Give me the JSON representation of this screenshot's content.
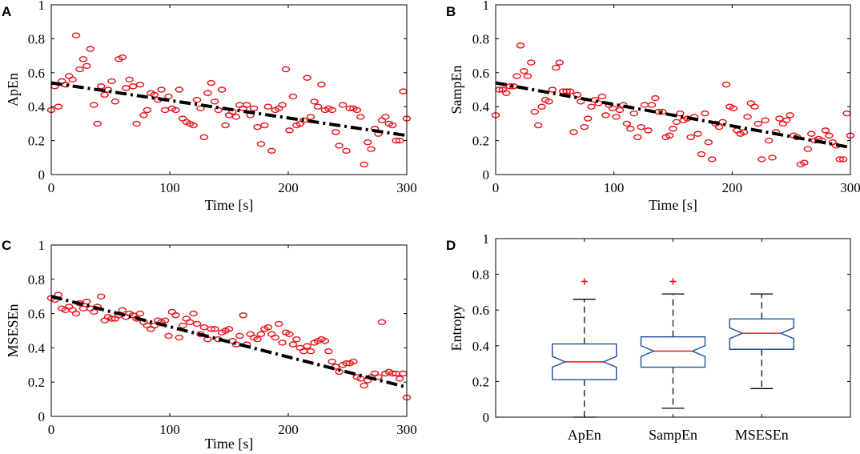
{
  "colors": {
    "points": "#e8141b",
    "fit": "#000000",
    "box": "#1f4e99",
    "median": "#e8141b",
    "outlier": "#e8141b",
    "whisker": "#000000"
  },
  "chart_data": [
    {
      "panel": "A",
      "type": "scatter",
      "xlabel": "Time [s]",
      "ylabel": "ApEn",
      "xlim": [
        0,
        300
      ],
      "ylim": [
        0,
        1
      ],
      "xticks": [
        "0",
        "100",
        "200",
        "300"
      ],
      "yticks": [
        "0",
        "0.2",
        "0.4",
        "0.6",
        "0.8",
        "1"
      ],
      "fit_line": {
        "style": "dash-dot",
        "y_at_x0": 0.54,
        "y_at_x300": 0.23
      },
      "x": [
        0,
        3,
        6,
        9,
        12,
        15,
        18,
        21,
        24,
        27,
        30,
        33,
        36,
        39,
        42,
        45,
        48,
        51,
        54,
        57,
        60,
        63,
        66,
        69,
        72,
        75,
        78,
        81,
        84,
        87,
        90,
        93,
        96,
        99,
        102,
        105,
        108,
        111,
        114,
        117,
        120,
        123,
        126,
        129,
        132,
        135,
        138,
        141,
        144,
        147,
        150,
        153,
        156,
        159,
        162,
        165,
        168,
        171,
        174,
        177,
        180,
        183,
        186,
        189,
        192,
        195,
        198,
        201,
        204,
        207,
        210,
        213,
        216,
        219,
        222,
        225,
        228,
        231,
        234,
        237,
        240,
        243,
        246,
        249,
        252,
        255,
        258,
        261,
        264,
        267,
        270,
        273,
        276,
        279,
        282,
        285,
        288,
        291,
        294,
        297,
        300
      ],
      "y": [
        0.38,
        0.52,
        0.4,
        0.55,
        0.53,
        0.58,
        0.56,
        0.82,
        0.62,
        0.68,
        0.64,
        0.74,
        0.41,
        0.3,
        0.52,
        0.47,
        0.5,
        0.55,
        0.43,
        0.68,
        0.69,
        0.51,
        0.56,
        0.52,
        0.3,
        0.53,
        0.35,
        0.38,
        0.48,
        0.47,
        0.44,
        0.5,
        0.38,
        0.46,
        0.39,
        0.38,
        0.5,
        0.33,
        0.31,
        0.3,
        0.29,
        0.44,
        0.39,
        0.22,
        0.48,
        0.54,
        0.43,
        0.38,
        0.5,
        0.29,
        0.35,
        0.37,
        0.34,
        0.41,
        0.39,
        0.41,
        0.35,
        0.39,
        0.28,
        0.18,
        0.29,
        0.4,
        0.14,
        0.38,
        0.39,
        0.41,
        0.62,
        0.26,
        0.46,
        0.29,
        0.3,
        0.32,
        0.57,
        0.34,
        0.43,
        0.4,
        0.53,
        0.38,
        0.39,
        0.38,
        0.25,
        0.17,
        0.41,
        0.14,
        0.39,
        0.39,
        0.38,
        0.34,
        0.06,
        0.19,
        0.15,
        0.27,
        0.24,
        0.32,
        0.34,
        0.3,
        0.29,
        0.2,
        0.2,
        0.49,
        0.33
      ]
    },
    {
      "panel": "B",
      "type": "scatter",
      "xlabel": "Time [s]",
      "ylabel": "SampEn",
      "xlim": [
        0,
        300
      ],
      "ylim": [
        0,
        1
      ],
      "xticks": [
        "0",
        "100",
        "200",
        "300"
      ],
      "yticks": [
        "0",
        "0.2",
        "0.4",
        "0.6",
        "0.8",
        "1"
      ],
      "fit_line": {
        "style": "dash-dot",
        "y_at_x0": 0.54,
        "y_at_x300": 0.16
      },
      "x": [
        0,
        3,
        6,
        9,
        12,
        15,
        18,
        21,
        24,
        27,
        30,
        33,
        36,
        39,
        42,
        45,
        48,
        51,
        54,
        57,
        60,
        63,
        66,
        69,
        72,
        75,
        78,
        81,
        84,
        87,
        90,
        93,
        96,
        99,
        102,
        105,
        108,
        111,
        114,
        117,
        120,
        123,
        126,
        129,
        132,
        135,
        138,
        141,
        144,
        147,
        150,
        153,
        156,
        159,
        162,
        165,
        168,
        171,
        174,
        177,
        180,
        183,
        186,
        189,
        192,
        195,
        198,
        201,
        204,
        207,
        210,
        213,
        216,
        219,
        222,
        225,
        228,
        231,
        234,
        237,
        240,
        243,
        246,
        249,
        252,
        255,
        258,
        261,
        264,
        267,
        270,
        273,
        276,
        279,
        282,
        285,
        288,
        291,
        294,
        297,
        300
      ],
      "y": [
        0.35,
        0.5,
        0.5,
        0.48,
        0.52,
        0.52,
        0.58,
        0.76,
        0.61,
        0.58,
        0.66,
        0.37,
        0.29,
        0.4,
        0.44,
        0.43,
        0.5,
        0.63,
        0.66,
        0.49,
        0.49,
        0.49,
        0.25,
        0.47,
        0.43,
        0.28,
        0.33,
        0.4,
        0.44,
        0.42,
        0.46,
        0.35,
        0.41,
        0.39,
        0.34,
        0.38,
        0.41,
        0.3,
        0.27,
        0.36,
        0.22,
        0.28,
        0.41,
        0.26,
        0.41,
        0.45,
        0.37,
        0.37,
        0.22,
        0.23,
        0.27,
        0.31,
        0.36,
        0.32,
        0.33,
        0.22,
        0.34,
        0.24,
        0.12,
        0.36,
        0.19,
        0.09,
        0.3,
        0.28,
        0.31,
        0.53,
        0.4,
        0.39,
        0.26,
        0.24,
        0.25,
        0.34,
        0.42,
        0.4,
        0.3,
        0.09,
        0.32,
        0.2,
        0.1,
        0.25,
        0.33,
        0.3,
        0.32,
        0.35,
        0.23,
        0.22,
        0.06,
        0.07,
        0.15,
        0.24,
        0.2,
        0.21,
        0.2,
        0.26,
        0.23,
        0.19,
        0.17,
        0.09,
        0.09,
        0.36,
        0.23
      ]
    },
    {
      "panel": "C",
      "type": "scatter",
      "xlabel": "Time [s]",
      "ylabel": "MSESEn",
      "xlim": [
        0,
        300
      ],
      "ylim": [
        0,
        1
      ],
      "xticks": [
        "0",
        "100",
        "200",
        "300"
      ],
      "yticks": [
        "0",
        "0.2",
        "0.4",
        "0.6",
        "0.8",
        "1"
      ],
      "fit_line": {
        "style": "dash-dot",
        "y_at_x0": 0.7,
        "y_at_x300": 0.17
      },
      "x": [
        0,
        3,
        6,
        9,
        12,
        15,
        18,
        21,
        24,
        27,
        30,
        33,
        36,
        39,
        42,
        45,
        48,
        51,
        54,
        57,
        60,
        63,
        66,
        69,
        72,
        75,
        78,
        81,
        84,
        87,
        90,
        93,
        96,
        99,
        102,
        105,
        108,
        111,
        114,
        117,
        120,
        123,
        126,
        129,
        132,
        135,
        138,
        141,
        144,
        147,
        150,
        153,
        156,
        159,
        162,
        165,
        168,
        171,
        174,
        177,
        180,
        183,
        186,
        189,
        192,
        195,
        198,
        201,
        204,
        207,
        210,
        213,
        216,
        219,
        222,
        225,
        228,
        231,
        234,
        237,
        240,
        243,
        246,
        249,
        252,
        255,
        258,
        261,
        264,
        267,
        270,
        273,
        276,
        279,
        282,
        285,
        288,
        291,
        294,
        297,
        300
      ],
      "y": [
        0.69,
        0.68,
        0.71,
        0.63,
        0.62,
        0.64,
        0.62,
        0.6,
        0.66,
        0.63,
        0.67,
        0.63,
        0.61,
        0.64,
        0.7,
        0.56,
        0.58,
        0.57,
        0.57,
        0.59,
        0.62,
        0.58,
        0.6,
        0.59,
        0.57,
        0.6,
        0.55,
        0.53,
        0.51,
        0.53,
        0.56,
        0.55,
        0.56,
        0.47,
        0.61,
        0.59,
        0.46,
        0.53,
        0.57,
        0.55,
        0.6,
        0.54,
        0.48,
        0.52,
        0.45,
        0.51,
        0.51,
        0.45,
        0.49,
        0.5,
        0.51,
        0.44,
        0.42,
        0.47,
        0.59,
        0.42,
        0.48,
        0.46,
        0.45,
        0.48,
        0.51,
        0.52,
        0.48,
        0.46,
        0.54,
        0.43,
        0.49,
        0.48,
        0.42,
        0.45,
        0.4,
        0.38,
        0.41,
        0.38,
        0.43,
        0.44,
        0.45,
        0.44,
        0.38,
        0.32,
        0.29,
        0.26,
        0.3,
        0.31,
        0.31,
        0.32,
        0.23,
        0.22,
        0.18,
        0.21,
        0.23,
        0.25,
        0.23,
        0.55,
        0.25,
        0.26,
        0.25,
        0.25,
        0.22,
        0.25,
        0.11
      ]
    },
    {
      "panel": "D",
      "type": "box",
      "xlabel": "",
      "ylabel": "Entropy",
      "ylim": [
        0,
        1
      ],
      "yticks": [
        "0",
        "0.2",
        "0.4",
        "0.6",
        "0.8",
        "1"
      ],
      "categories": [
        "ApEn",
        "SampEn",
        "MSESEn"
      ],
      "boxes": [
        {
          "name": "ApEn",
          "whisker_low": 0.0,
          "q1": 0.21,
          "median": 0.31,
          "q3": 0.41,
          "whisker_high": 0.66,
          "notch_low": 0.28,
          "notch_high": 0.34,
          "outliers": [
            0.76
          ]
        },
        {
          "name": "SampEn",
          "whisker_low": 0.05,
          "q1": 0.28,
          "median": 0.37,
          "q3": 0.45,
          "whisker_high": 0.69,
          "notch_low": 0.34,
          "notch_high": 0.4,
          "outliers": [
            0.76
          ]
        },
        {
          "name": "MSESEn",
          "whisker_low": 0.16,
          "q1": 0.38,
          "median": 0.47,
          "q3": 0.55,
          "whisker_high": 0.69,
          "notch_low": 0.44,
          "notch_high": 0.5,
          "outliers": []
        }
      ]
    }
  ]
}
